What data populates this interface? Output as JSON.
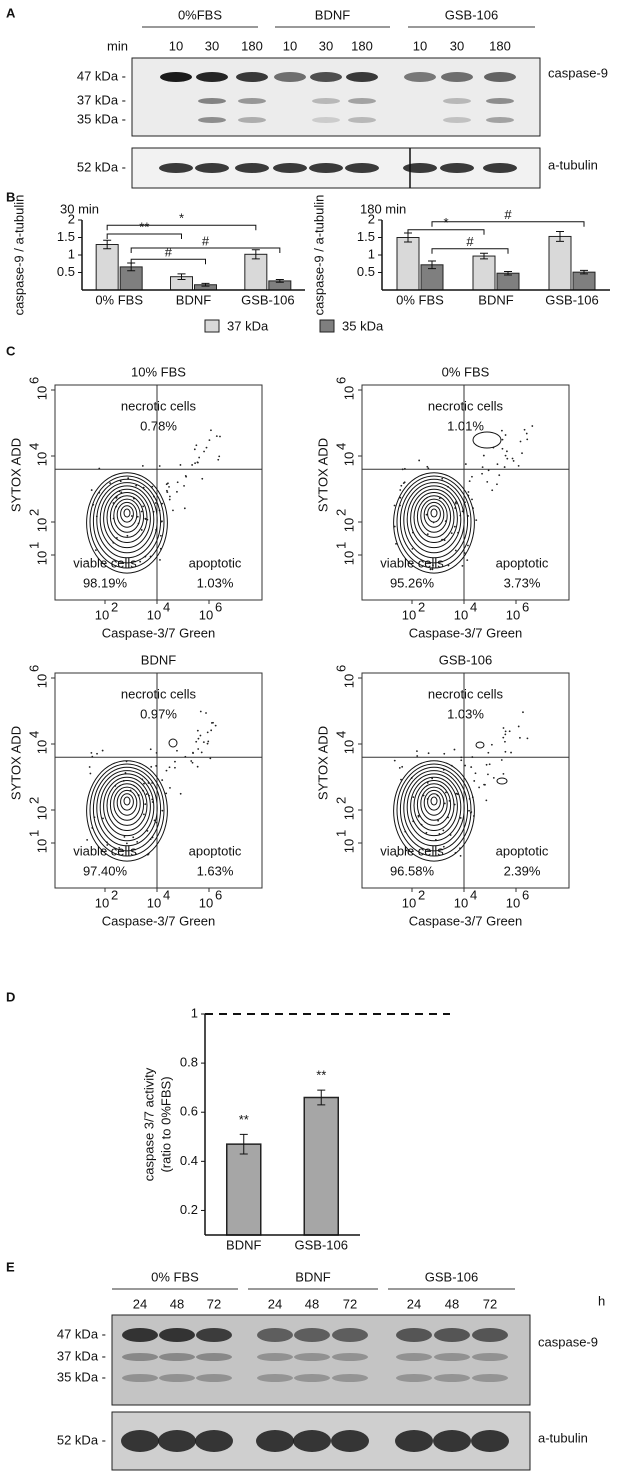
{
  "panel_labels": [
    "A",
    "B",
    "C",
    "D",
    "E"
  ],
  "panel_a": {
    "groups": [
      "0%FBS",
      "BDNF",
      "GSB-106"
    ],
    "time_unit": "min",
    "times": [
      "10",
      "30",
      "180",
      "10",
      "30",
      "180",
      "10",
      "30",
      "180"
    ],
    "markers": [
      "47 kDa -",
      "37 kDa -",
      "35 kDa -"
    ],
    "protein": "caspase-9",
    "loading_marker": "52 kDa -",
    "loading_protein": "a-tubulin"
  },
  "chart_data": [
    {
      "type": "bar",
      "title": "30 min",
      "ylabel": "caspase-9 / a-tubulin",
      "categories": [
        "0% FBS",
        "BDNF",
        "GSB-106"
      ],
      "series": [
        {
          "name": "37 kDa",
          "color": "#d9d9d9",
          "values": [
            1.3,
            0.38,
            1.02
          ],
          "errors": [
            0.12,
            0.08,
            0.13
          ]
        },
        {
          "name": "35 kDa",
          "color": "#7f7f7f",
          "values": [
            0.66,
            0.15,
            0.26
          ],
          "errors": [
            0.11,
            0.04,
            0.04
          ]
        }
      ],
      "ylim": [
        0,
        2
      ],
      "yticks": [
        0.5,
        1,
        1.5,
        2
      ],
      "annotations": [
        "*",
        "**",
        "#",
        "#"
      ]
    },
    {
      "type": "bar",
      "title": "180 min",
      "ylabel": "caspase-9 / a-tubulin",
      "categories": [
        "0% FBS",
        "BDNF",
        "GSB-106"
      ],
      "series": [
        {
          "color": "#d9d9d9",
          "values": [
            1.5,
            0.97,
            1.53
          ],
          "errors": [
            0.13,
            0.08,
            0.14
          ]
        },
        {
          "color": "#7f7f7f",
          "values": [
            0.72,
            0.48,
            0.51
          ],
          "errors": [
            0.11,
            0.05,
            0.05
          ]
        }
      ],
      "ylim": [
        0,
        2
      ],
      "yticks": [
        0.5,
        1,
        1.5,
        2
      ],
      "annotations": [
        "*",
        "#",
        "#"
      ]
    },
    {
      "type": "bar",
      "ylabel": [
        "caspase 3/7 activity",
        "(ratio to 0%FBS)"
      ],
      "categories": [
        "BDNF",
        "GSB-106"
      ],
      "values": [
        0.47,
        0.66
      ],
      "errors": [
        0.04,
        0.03
      ],
      "color": "#a6a6a6",
      "ylim": [
        0.1,
        1
      ],
      "yticks": [
        0.2,
        0.4,
        0.6,
        0.8,
        1
      ],
      "reference_line": 1,
      "annotations": [
        "**",
        "**"
      ]
    }
  ],
  "panel_c": {
    "xlabel": "Caspase-3/7 Green",
    "ylabel": "SYTOX ADD",
    "xticks": [
      {
        "base": "10",
        "exp": "2"
      },
      {
        "base": "10",
        "exp": "4"
      },
      {
        "base": "10",
        "exp": "6"
      }
    ],
    "yticks": [
      {
        "base": "10",
        "exp": "1"
      },
      {
        "base": "10",
        "exp": "2"
      },
      {
        "base": "10",
        "exp": "4"
      },
      {
        "base": "10",
        "exp": "6"
      }
    ],
    "quadrants": [
      "necrotic cells",
      "viable cells",
      "apoptotic"
    ],
    "plots": [
      {
        "title": "10% FBS",
        "percentages": [
          "0.78%",
          "98.19%",
          "1.03%"
        ]
      },
      {
        "title": "0% FBS",
        "percentages": [
          "1.01%",
          "95.26%",
          "3.73%"
        ]
      },
      {
        "title": "BDNF",
        "percentages": [
          "0.97%",
          "97.40%",
          "1.63%"
        ]
      },
      {
        "title": "GSB-106",
        "percentages": [
          "1.03%",
          "96.58%",
          "2.39%"
        ]
      }
    ]
  },
  "panel_e": {
    "groups": [
      "0% FBS",
      "BDNF",
      "GSB-106"
    ],
    "time_unit": "h",
    "times": [
      "24",
      "48",
      "72",
      "24",
      "48",
      "72",
      "24",
      "48",
      "72"
    ],
    "markers": [
      "47 kDa -",
      "37 kDa -",
      "35 kDa -"
    ],
    "protein": "caspase-9",
    "loading_marker": "52 kDa -",
    "loading_protein": "a-tubulin"
  }
}
